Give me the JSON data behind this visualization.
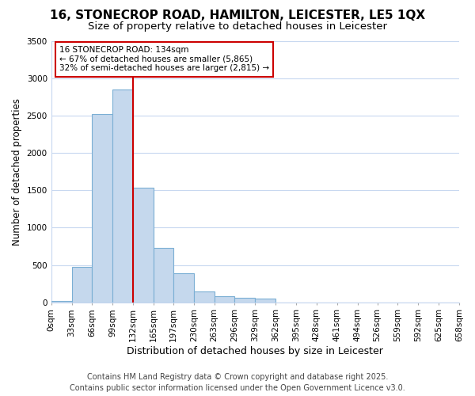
{
  "title": "16, STONECROP ROAD, HAMILTON, LEICESTER, LE5 1QX",
  "subtitle": "Size of property relative to detached houses in Leicester",
  "xlabel": "Distribution of detached houses by size in Leicester",
  "ylabel": "Number of detached properties",
  "bar_values": [
    20,
    470,
    2520,
    2850,
    1530,
    730,
    390,
    150,
    80,
    55,
    50,
    0,
    0,
    0,
    0,
    0,
    0,
    0,
    0,
    0
  ],
  "bin_edges": [
    0,
    33,
    66,
    99,
    132,
    165,
    197,
    230,
    263,
    296,
    329,
    362,
    395,
    428,
    461,
    494,
    526,
    559,
    592,
    625,
    658
  ],
  "bin_labels": [
    "0sqm",
    "33sqm",
    "66sqm",
    "99sqm",
    "132sqm",
    "165sqm",
    "197sqm",
    "230sqm",
    "263sqm",
    "296sqm",
    "329sqm",
    "362sqm",
    "395sqm",
    "428sqm",
    "461sqm",
    "494sqm",
    "526sqm",
    "559sqm",
    "592sqm",
    "625sqm",
    "658sqm"
  ],
  "bar_color": "#c5d8ed",
  "bar_edgecolor": "#7bafd4",
  "vline_x": 132,
  "vline_color": "#cc0000",
  "ylim": [
    0,
    3500
  ],
  "yticks": [
    0,
    500,
    1000,
    1500,
    2000,
    2500,
    3000,
    3500
  ],
  "annotation_title": "16 STONECROP ROAD: 134sqm",
  "annotation_line1": "← 67% of detached houses are smaller (5,865)",
  "annotation_line2": "32% of semi-detached houses are larger (2,815) →",
  "annotation_box_color": "#cc0000",
  "bg_color": "#ffffff",
  "plot_bg_color": "#ffffff",
  "grid_color": "#c8d8f0",
  "footer1": "Contains HM Land Registry data © Crown copyright and database right 2025.",
  "footer2": "Contains public sector information licensed under the Open Government Licence v3.0.",
  "title_fontsize": 11,
  "subtitle_fontsize": 9.5,
  "xlabel_fontsize": 9,
  "ylabel_fontsize": 8.5,
  "tick_fontsize": 7.5,
  "footer_fontsize": 7
}
